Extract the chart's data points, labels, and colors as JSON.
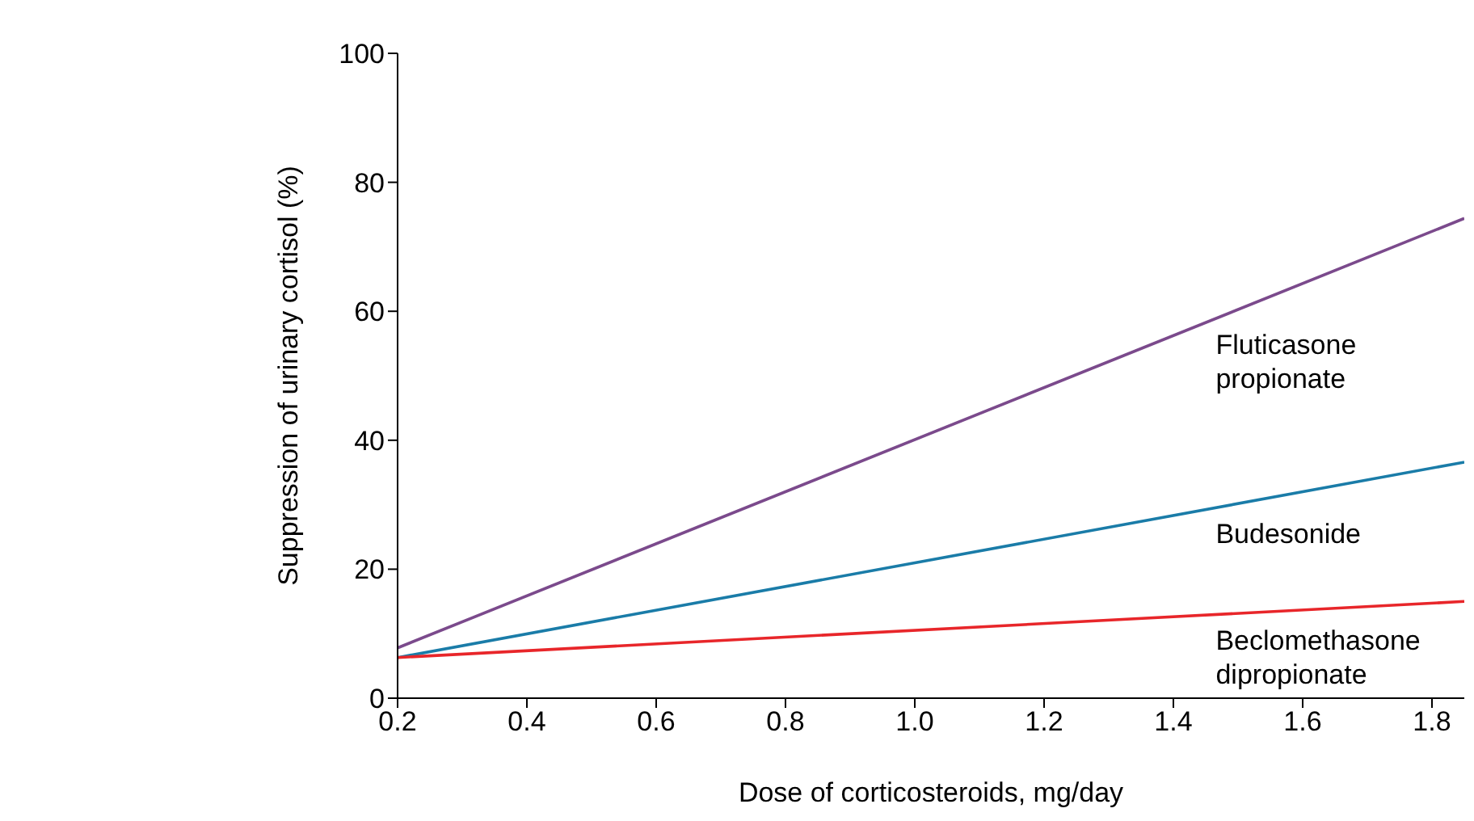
{
  "chart_data": {
    "type": "line",
    "xlabel": "Dose of corticosteroids, mg/day",
    "ylabel": "Suppression of urinary cortisol (%)",
    "xlim": [
      0.2,
      1.85
    ],
    "xticks": [
      0.2,
      0.4,
      0.6,
      0.8,
      {
        "value": 1,
        "label": "1.0"
      },
      1.2,
      1.4,
      1.6,
      1.8
    ],
    "ylim": [
      0,
      100
    ],
    "yticks": [
      0,
      20,
      40,
      60,
      80,
      100
    ],
    "grid": false,
    "legend": false,
    "marker": "none",
    "line_style": "solid",
    "x": [
      0.2,
      1.85
    ],
    "series": [
      {
        "name": "Fluticasone propionate",
        "color": "#7b4a8c",
        "values": [
          7.8,
          74.4
        ]
      },
      {
        "name": "Budesonide",
        "color": "#1a7ca8",
        "values": [
          6.3,
          36.6
        ]
      },
      {
        "name": "Beclomethasone dipropionate",
        "color": "#e8262a",
        "values": [
          6.3,
          15.0
        ]
      }
    ]
  }
}
